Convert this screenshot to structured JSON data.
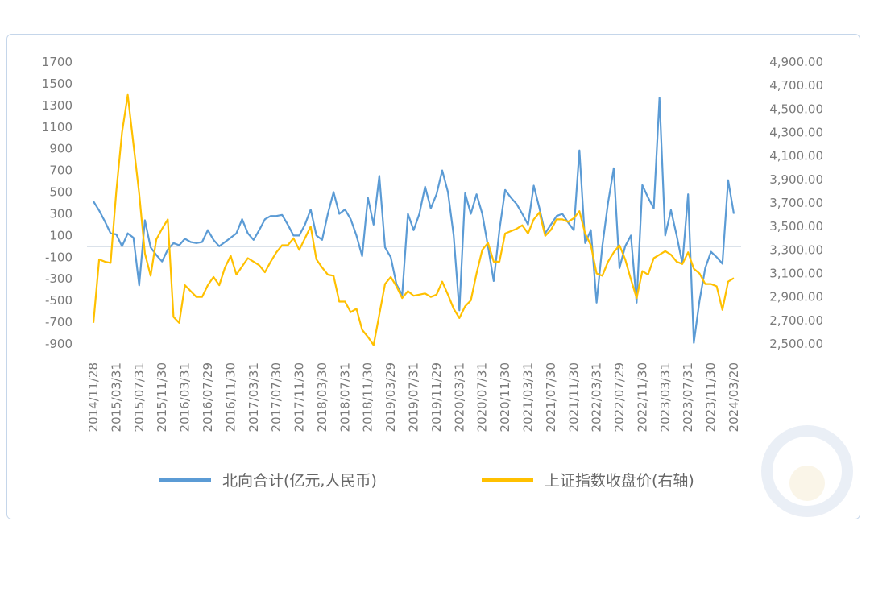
{
  "chart_data": {
    "type": "line",
    "categories": [
      "2014/11/28",
      null,
      null,
      null,
      "2015/03/31",
      null,
      null,
      null,
      "2015/07/31",
      null,
      null,
      null,
      "2015/11/30",
      null,
      null,
      null,
      "2016/03/31",
      null,
      null,
      null,
      "2016/07/29",
      null,
      null,
      null,
      "2016/11/30",
      null,
      null,
      null,
      "2017/03/31",
      null,
      null,
      null,
      "2017/07/30",
      null,
      null,
      null,
      "2017/11/30",
      null,
      null,
      null,
      "2018/03/30",
      null,
      null,
      null,
      "2018/07/31",
      null,
      null,
      null,
      "2018/11/30",
      null,
      null,
      null,
      "2019/03/29",
      null,
      null,
      null,
      "2019/07/31",
      null,
      null,
      null,
      "2019/11/29",
      null,
      null,
      null,
      "2020/03/31",
      null,
      null,
      null,
      "2020/07/31",
      null,
      null,
      null,
      "2020/11/30",
      null,
      null,
      null,
      "2021/03/31",
      null,
      null,
      null,
      "2021/07/30",
      null,
      null,
      null,
      "2021/11/30",
      null,
      null,
      null,
      "2022/03/31",
      null,
      null,
      null,
      "2022/07/29",
      null,
      null,
      null,
      "2022/11/30",
      null,
      null,
      null,
      "2023/03/31",
      null,
      null,
      null,
      "2023/07/31",
      null,
      null,
      null,
      "2023/11/30",
      null,
      null,
      null,
      "2024/03/20"
    ],
    "series": [
      {
        "name": "北向合计(亿元,人民币)",
        "color": "#5b9bd5",
        "axis": "y",
        "values": [
          415,
          330,
          230,
          120,
          110,
          0,
          120,
          80,
          -360,
          240,
          -10,
          -80,
          -140,
          -30,
          30,
          10,
          70,
          40,
          30,
          40,
          150,
          60,
          0,
          40,
          80,
          120,
          250,
          120,
          60,
          150,
          250,
          280,
          280,
          290,
          200,
          100,
          100,
          200,
          340,
          100,
          60,
          300,
          500,
          300,
          340,
          250,
          100,
          -90,
          450,
          200,
          650,
          -10,
          -100,
          -350,
          -450,
          300,
          150,
          300,
          550,
          350,
          480,
          700,
          500,
          100,
          -590,
          490,
          300,
          480,
          300,
          0,
          -320,
          150,
          520,
          450,
          390,
          300,
          200,
          560,
          350,
          120,
          200,
          280,
          300,
          220,
          150,
          885,
          30,
          150,
          -520,
          0,
          400,
          720,
          -200,
          0,
          100,
          -520,
          565,
          450,
          350,
          1370,
          100,
          335,
          100,
          -160,
          480,
          -890,
          -500,
          -200,
          -50,
          -100,
          -160,
          610,
          300
        ]
      },
      {
        "name": "上证指数收盘价(右轴)",
        "color": "#ffc000",
        "axis": "y2",
        "values": [
          2680,
          3220,
          3200,
          3190,
          3800,
          4300,
          4620,
          4200,
          3780,
          3270,
          3080,
          3390,
          3480,
          3560,
          2730,
          2680,
          3000,
          2950,
          2900,
          2900,
          3000,
          3070,
          3000,
          3150,
          3250,
          3090,
          3160,
          3230,
          3200,
          3170,
          3110,
          3200,
          3280,
          3340,
          3340,
          3400,
          3300,
          3400,
          3500,
          3220,
          3150,
          3090,
          3080,
          2860,
          2860,
          2770,
          2800,
          2620,
          2560,
          2490,
          2750,
          3010,
          3070,
          2990,
          2890,
          2950,
          2910,
          2920,
          2930,
          2900,
          2920,
          3030,
          2920,
          2800,
          2720,
          2820,
          2870,
          3100,
          3300,
          3360,
          3200,
          3200,
          3440,
          3460,
          3480,
          3510,
          3440,
          3560,
          3620,
          3420,
          3470,
          3560,
          3560,
          3540,
          3570,
          3630,
          3440,
          3340,
          3100,
          3080,
          3200,
          3280,
          3340,
          3220,
          3050,
          2890,
          3120,
          3090,
          3230,
          3260,
          3290,
          3260,
          3200,
          3180,
          3280,
          3140,
          3100,
          3010,
          3010,
          2990,
          2790,
          3030,
          3060
        ]
      }
    ],
    "ylim": [
      -900,
      1700
    ],
    "yticks": [
      1700,
      1500,
      1300,
      1100,
      900,
      700,
      500,
      300,
      100,
      -100,
      -300,
      -500,
      -700,
      -900
    ],
    "y2lim": [
      2500,
      4900
    ],
    "y2ticks": [
      {
        "value": 4900,
        "label": "4,900.00"
      },
      {
        "value": 4700,
        "label": "4,700.00"
      },
      {
        "value": 4500,
        "label": "4,500.00"
      },
      {
        "value": 4300,
        "label": "4,300.00"
      },
      {
        "value": 4100,
        "label": "4,100.00"
      },
      {
        "value": 3900,
        "label": "3,900.00"
      },
      {
        "value": 3700,
        "label": "3,700.00"
      },
      {
        "value": 3500,
        "label": "3,500.00"
      },
      {
        "value": 3300,
        "label": "3,300.00"
      },
      {
        "value": 3100,
        "label": "3,100.00"
      },
      {
        "value": 2900,
        "label": "2,900.00"
      },
      {
        "value": 2700,
        "label": "2,700.00"
      },
      {
        "value": 2500,
        "label": "2,500.00"
      }
    ],
    "legend": "bottom"
  }
}
